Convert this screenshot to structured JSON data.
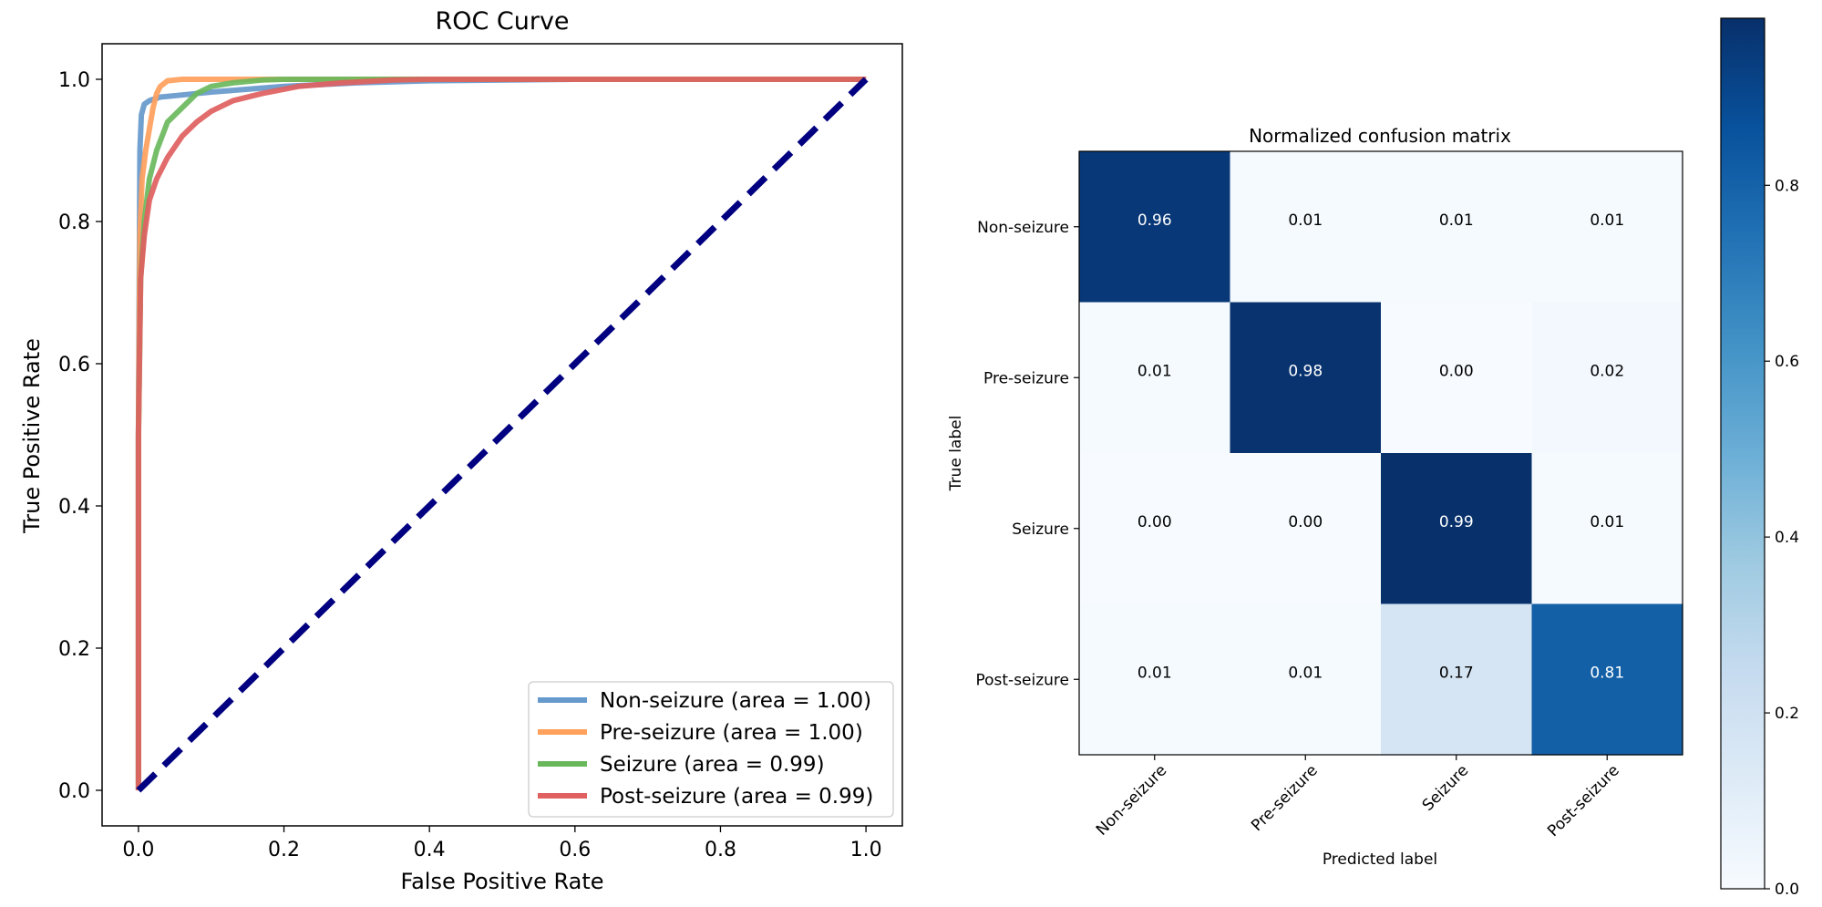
{
  "chart_data": [
    {
      "type": "line",
      "title": "ROC Curve",
      "xlabel": "False Positive Rate",
      "ylabel": "True Positive Rate",
      "xlim": [
        -0.05,
        1.05
      ],
      "ylim": [
        -0.05,
        1.05
      ],
      "xticks": [
        "0.0",
        "0.2",
        "0.4",
        "0.6",
        "0.8",
        "1.0"
      ],
      "yticks": [
        "0.0",
        "0.2",
        "0.4",
        "0.6",
        "0.8",
        "1.0"
      ],
      "grid": false,
      "legend_position": "lower-right",
      "series": [
        {
          "name": "Non-seizure (area = 1.00)",
          "color": "#6699cc",
          "x": [
            0,
            0.0,
            0.002,
            0.004,
            0.008,
            0.015,
            0.03,
            0.06,
            0.1,
            0.15,
            0.2,
            0.3,
            0.4,
            0.6,
            1.0
          ],
          "y": [
            0,
            0.5,
            0.9,
            0.95,
            0.965,
            0.97,
            0.975,
            0.978,
            0.982,
            0.986,
            0.99,
            0.995,
            0.998,
            1.0,
            1.0
          ]
        },
        {
          "name": "Pre-seizure (area = 1.00)",
          "color": "#ffa05c",
          "x": [
            0,
            0.0,
            0.002,
            0.005,
            0.01,
            0.015,
            0.02,
            0.025,
            0.03,
            0.04,
            0.06,
            0.1,
            1.0
          ],
          "y": [
            0,
            0.5,
            0.78,
            0.86,
            0.9,
            0.93,
            0.96,
            0.98,
            0.99,
            0.998,
            1.0,
            1.0,
            1.0
          ]
        },
        {
          "name": "Seizure (area = 0.99)",
          "color": "#6ab85c",
          "x": [
            0,
            0.0,
            0.003,
            0.008,
            0.015,
            0.025,
            0.04,
            0.06,
            0.08,
            0.1,
            0.13,
            0.17,
            0.2,
            1.0
          ],
          "y": [
            0,
            0.5,
            0.72,
            0.8,
            0.86,
            0.9,
            0.94,
            0.96,
            0.98,
            0.99,
            0.995,
            0.999,
            1.0,
            1.0
          ]
        },
        {
          "name": "Post-seizure (area = 0.99)",
          "color": "#e06060",
          "x": [
            0,
            0.0,
            0.003,
            0.008,
            0.015,
            0.025,
            0.04,
            0.06,
            0.08,
            0.1,
            0.13,
            0.17,
            0.22,
            0.28,
            0.35,
            0.4,
            1.0
          ],
          "y": [
            0,
            0.5,
            0.72,
            0.78,
            0.83,
            0.86,
            0.89,
            0.92,
            0.94,
            0.955,
            0.97,
            0.98,
            0.99,
            0.995,
            0.999,
            1.0,
            1.0
          ]
        },
        {
          "name": "",
          "color": "#000080",
          "dashed": true,
          "x": [
            0,
            1
          ],
          "y": [
            0,
            1
          ]
        }
      ]
    },
    {
      "type": "heatmap",
      "title": "Normalized confusion matrix",
      "xlabel": "Predicted label",
      "ylabel": "True label",
      "categories": [
        "Non-seizure",
        "Pre-seizure",
        "Seizure",
        "Post-seizure"
      ],
      "values": [
        [
          0.96,
          0.01,
          0.01,
          0.01
        ],
        [
          0.01,
          0.98,
          0.0,
          0.02
        ],
        [
          0.0,
          0.0,
          0.99,
          0.01
        ],
        [
          0.01,
          0.01,
          0.17,
          0.81
        ]
      ],
      "labels": [
        [
          "0.96",
          "0.01",
          "0.01",
          "0.01"
        ],
        [
          "0.01",
          "0.98",
          "0.00",
          "0.02"
        ],
        [
          "0.00",
          "0.00",
          "0.99",
          "0.01"
        ],
        [
          "0.01",
          "0.01",
          "0.17",
          "0.81"
        ]
      ],
      "colormap": "Blues",
      "colorbar_range": [
        0,
        0.99
      ],
      "colorbar_ticks": [
        "0.0",
        "0.2",
        "0.4",
        "0.6",
        "0.8"
      ]
    }
  ]
}
